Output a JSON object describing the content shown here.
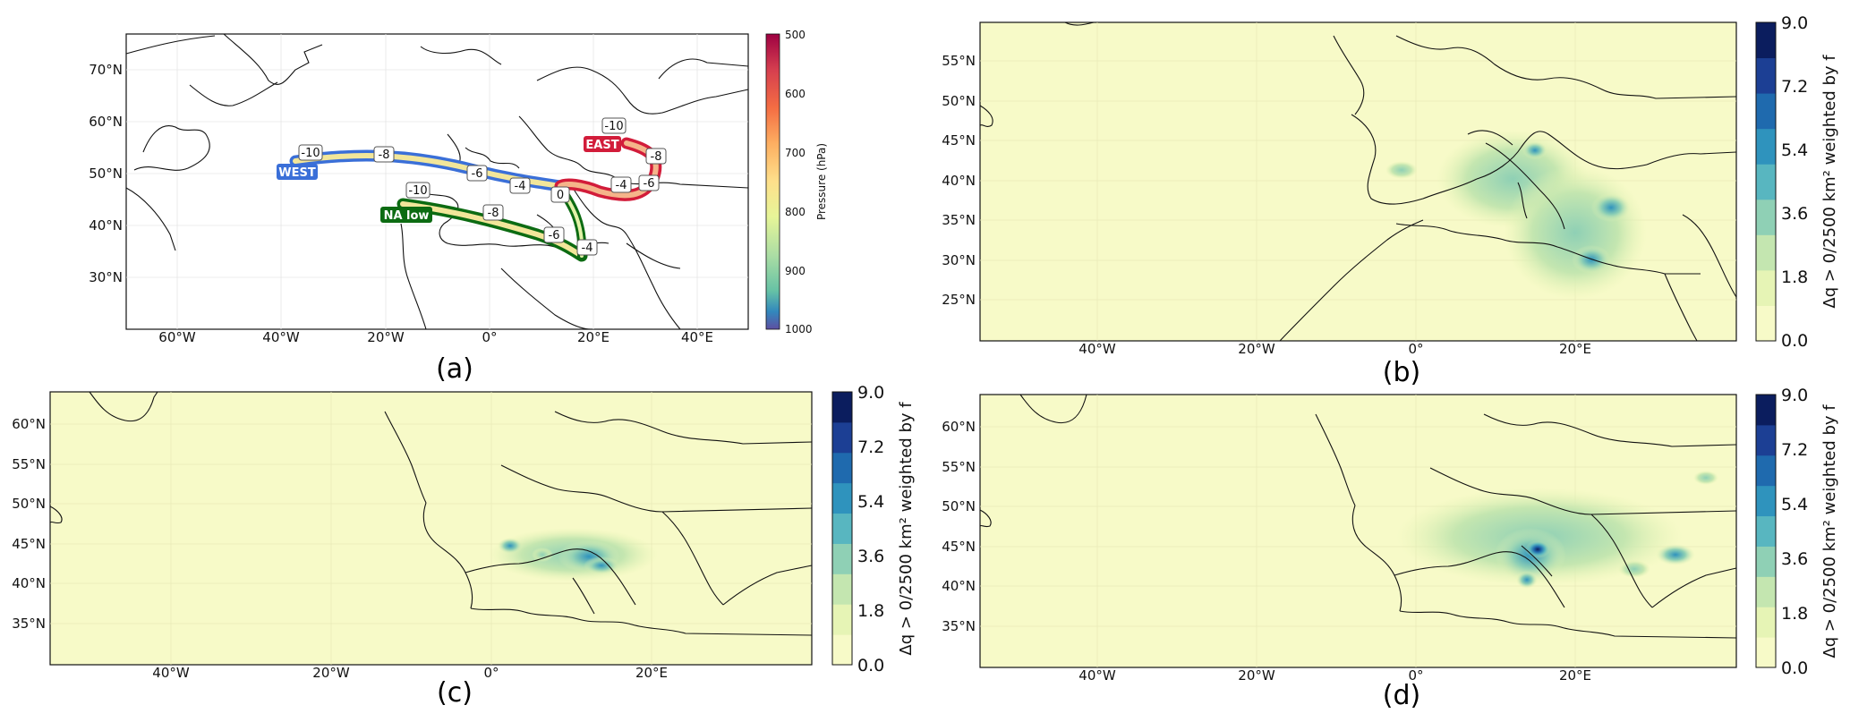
{
  "panels": [
    {
      "id": "a",
      "label": "(a)",
      "lat_ticks": [
        "70°N",
        "60°N",
        "50°N",
        "40°N",
        "30°N"
      ],
      "lon_ticks": [
        "60°W",
        "40°W",
        "20°W",
        "0°",
        "20°E",
        "40°E"
      ],
      "colorbar": {
        "label": "Pressure (hPa)",
        "ticks": [
          "500",
          "600",
          "700",
          "800",
          "900",
          "1000"
        ],
        "range": [
          500,
          1000
        ],
        "colormap": "Spectral"
      },
      "routes": [
        {
          "name": "WEST",
          "color": "#3a6fd8",
          "labels": [
            "-10",
            "-8",
            "-6",
            "-4",
            "0"
          ]
        },
        {
          "name": "NA low",
          "color": "#0c6b12",
          "labels": [
            "-10",
            "-8",
            "-6",
            "-4"
          ]
        },
        {
          "name": "EAST",
          "color": "#d21c3a",
          "labels": [
            "-10",
            "-8",
            "-6",
            "-4",
            "0"
          ]
        }
      ]
    },
    {
      "id": "b",
      "label": "(b)",
      "lat_ticks": [
        "55°N",
        "50°N",
        "45°N",
        "40°N",
        "35°N",
        "30°N",
        "25°N"
      ],
      "lon_ticks": [
        "40°W",
        "20°W",
        "0°",
        "20°E"
      ],
      "colorbar": {
        "label": "Δq > 0/2500 km² weighted by f",
        "ticks": [
          "9.0",
          "7.2",
          "5.4",
          "3.6",
          "1.8",
          "0.0"
        ],
        "range": [
          0.0,
          9.0
        ]
      }
    },
    {
      "id": "c",
      "label": "(c)",
      "lat_ticks": [
        "60°N",
        "55°N",
        "50°N",
        "45°N",
        "40°N",
        "35°N"
      ],
      "lon_ticks": [
        "40°W",
        "20°W",
        "0°",
        "20°E"
      ],
      "colorbar": {
        "label": "Δq > 0/2500 km² weighted by f",
        "ticks": [
          "9.0",
          "7.2",
          "5.4",
          "3.6",
          "1.8",
          "0.0"
        ],
        "range": [
          0.0,
          9.0
        ]
      }
    },
    {
      "id": "d",
      "label": "(d)",
      "lat_ticks": [
        "60°N",
        "55°N",
        "50°N",
        "45°N",
        "40°N",
        "35°N"
      ],
      "lon_ticks": [
        "40°W",
        "20°W",
        "0°",
        "20°E"
      ],
      "colorbar": {
        "label": "Δq > 0/2500 km² weighted by f",
        "ticks": [
          "9.0",
          "7.2",
          "5.4",
          "3.6",
          "1.8",
          "0.0"
        ],
        "range": [
          0.0,
          9.0
        ]
      }
    }
  ],
  "colors": {
    "map_background": "#f7fac8",
    "coastline": "#111111",
    "q_scale": [
      "#f7fac8",
      "#e6f4b5",
      "#c4e6b0",
      "#8fd0b5",
      "#58b6c0",
      "#2f93bd",
      "#1f6aae",
      "#1c3f94",
      "#0b1d5e"
    ]
  }
}
